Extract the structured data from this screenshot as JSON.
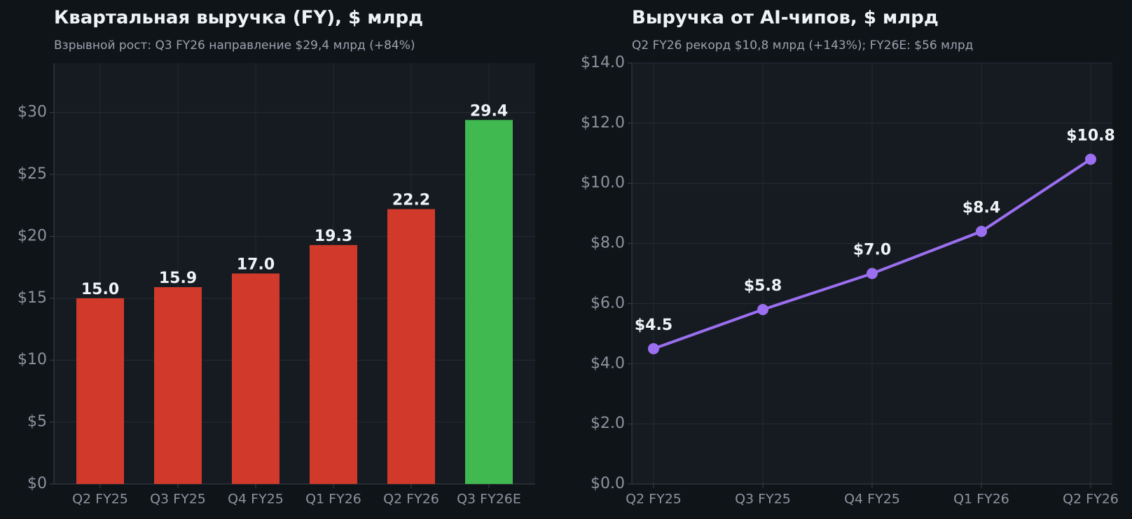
{
  "chart_data": [
    {
      "type": "bar",
      "title": "Квартальная выручка (FY), $ млрд",
      "subtitle": "Взрывной рост: Q3 FY26 направление $29,4 млрд (+84%)",
      "categories": [
        "Q2 FY25",
        "Q3 FY25",
        "Q4 FY25",
        "Q1 FY26",
        "Q2 FY26",
        "Q3 FY26E"
      ],
      "values": [
        15.0,
        15.9,
        17.0,
        19.3,
        22.2,
        29.4
      ],
      "value_labels": [
        "15.0",
        "15.9",
        "17.0",
        "19.3",
        "22.2",
        "29.4"
      ],
      "colors": [
        "#d13a2b",
        "#d13a2b",
        "#d13a2b",
        "#d13a2b",
        "#d13a2b",
        "#3fb950"
      ],
      "ylim": [
        0,
        34
      ],
      "yticks": [
        {
          "value": 0,
          "label": "$0"
        },
        {
          "value": 5,
          "label": "$5"
        },
        {
          "value": 10,
          "label": "$10"
        },
        {
          "value": 15,
          "label": "$15"
        },
        {
          "value": 20,
          "label": "$20"
        },
        {
          "value": 25,
          "label": "$25"
        },
        {
          "value": 30,
          "label": "$30"
        }
      ],
      "grid": true
    },
    {
      "type": "line",
      "title": "Выручка от AI-чипов, $ млрд",
      "subtitle": "Q2 FY26 рекорд $10,8 млрд (+143%); FY26E: $56 млрд",
      "categories": [
        "Q2 FY25",
        "Q3 FY25",
        "Q4 FY25",
        "Q1 FY26",
        "Q2 FY26"
      ],
      "values": [
        4.5,
        5.8,
        7.0,
        8.4,
        10.8
      ],
      "value_labels": [
        "$4.5",
        "$5.8",
        "$7.0",
        "$8.4",
        "$10.8"
      ],
      "color": "#9b6ff0",
      "ylim": [
        0,
        14
      ],
      "yticks": [
        {
          "value": 0,
          "label": "$0.0"
        },
        {
          "value": 2,
          "label": "$2.0"
        },
        {
          "value": 4,
          "label": "$4.0"
        },
        {
          "value": 6,
          "label": "$6.0"
        },
        {
          "value": 8,
          "label": "$8.0"
        },
        {
          "value": 10,
          "label": "$10.0"
        },
        {
          "value": 12,
          "label": "$12.0"
        },
        {
          "value": 14,
          "label": "$14.0"
        }
      ],
      "grid": true
    }
  ]
}
